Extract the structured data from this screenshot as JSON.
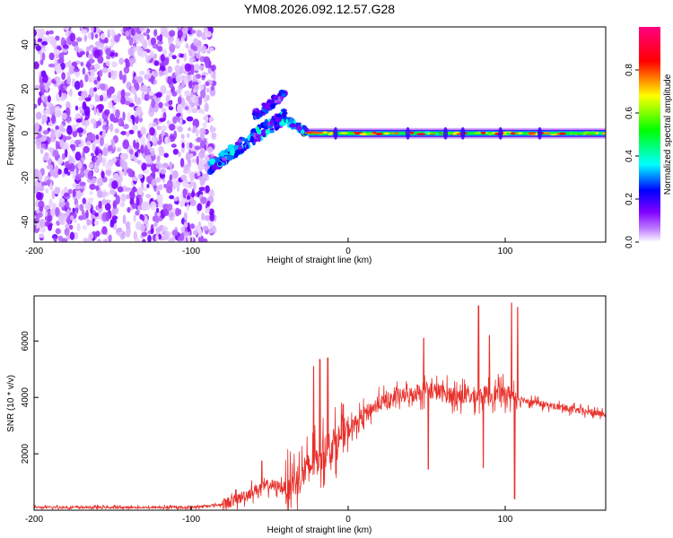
{
  "title": "YM08.2026.092.12.57.G28",
  "chart_data": [
    {
      "type": "heatmap",
      "name": "spectrogram",
      "xlabel": "Height of straight line (km)",
      "ylabel": "Frequency (Hz)",
      "xlim": [
        -200,
        164
      ],
      "ylim": [
        -49,
        48
      ],
      "xticks": [
        -200,
        -100,
        0,
        100
      ],
      "yticks": [
        -40,
        -20,
        0,
        20,
        40
      ],
      "colorbar": {
        "label": "Normalized spectral amplitude",
        "range": [
          0,
          1
        ],
        "ticks": [
          0.0,
          0.2,
          0.4,
          0.6,
          0.8
        ],
        "tick_labels": [
          "0.0",
          "0.2",
          "0.4",
          "0.6",
          "0.8"
        ],
        "colormap": [
          "#ffffff",
          "#8000ff",
          "#0000ff",
          "#00ffff",
          "#00ff00",
          "#ffff00",
          "#ff0000",
          "#ff0080"
        ]
      },
      "regions": [
        {
          "x": [
            -200,
            -85
          ],
          "freq": [
            -49,
            48
          ],
          "amplitude": 0.12,
          "description": "scattered noise"
        },
        {
          "x": [
            -88,
            -40
          ],
          "freq_start": -15,
          "freq_end": 8,
          "amplitude": 0.35
        },
        {
          "x": [
            -60,
            -40
          ],
          "freq_start": 8,
          "freq_end": 18,
          "amplitude": 0.25
        },
        {
          "x": [
            -40,
            -25
          ],
          "freq_start": 6,
          "freq_end": 0,
          "amplitude": 0.4
        },
        {
          "x": [
            -25,
            164
          ],
          "freq": 0,
          "amplitude": 0.75,
          "description": "carrier line"
        }
      ]
    },
    {
      "type": "line",
      "name": "snr",
      "xlabel": "Height of straight line (km)",
      "ylabel": "SNR (10 * v/v)",
      "xlim": [
        -200,
        164
      ],
      "ylim": [
        0,
        7600
      ],
      "xticks": [
        -200,
        -100,
        0,
        100
      ],
      "yticks": [
        2000,
        4000,
        6000
      ],
      "color": "#e8302a",
      "envelope": {
        "x": [
          -200,
          -100,
          -80,
          -70,
          -60,
          -50,
          -40,
          -30,
          -20,
          -10,
          0,
          10,
          20,
          30,
          40,
          50,
          60,
          70,
          80,
          90,
          100,
          110,
          120,
          130,
          140,
          150,
          164
        ],
        "y": [
          100,
          100,
          200,
          400,
          700,
          900,
          800,
          1200,
          1800,
          2300,
          2800,
          3400,
          3800,
          4000,
          4100,
          4300,
          4150,
          4050,
          4050,
          4100,
          4150,
          3950,
          3800,
          3700,
          3600,
          3500,
          3400
        ]
      },
      "spikes": [
        {
          "x": -55,
          "y": 1750
        },
        {
          "x": -22,
          "y": 5100
        },
        {
          "x": -18,
          "y": 5350
        },
        {
          "x": -13,
          "y": 5400
        },
        {
          "x": 48,
          "y": 6100
        },
        {
          "x": 51,
          "y": 1450
        },
        {
          "x": 83,
          "y": 7250
        },
        {
          "x": 86,
          "y": 1500
        },
        {
          "x": 90,
          "y": 6200
        },
        {
          "x": 104,
          "y": 7350
        },
        {
          "x": 106,
          "y": 400
        },
        {
          "x": 108,
          "y": 7200
        }
      ]
    }
  ]
}
